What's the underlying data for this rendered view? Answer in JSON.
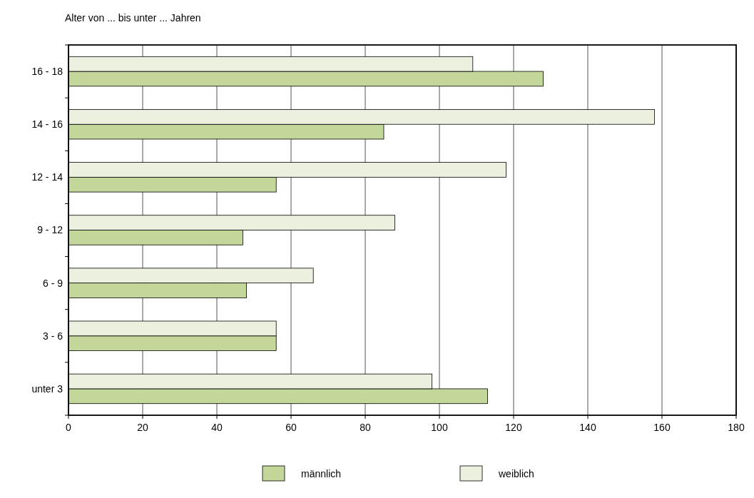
{
  "chart_data": {
    "type": "bar",
    "orientation": "horizontal",
    "ylabel": "Alter von ... bis unter ... Jahren",
    "categories": [
      "16 - 18",
      "14 - 16",
      "12 - 14",
      "9 - 12",
      "6 - 9",
      "3 - 6",
      "unter 3"
    ],
    "series": [
      {
        "name": "männlich",
        "color": "#c4d79b",
        "values": [
          128,
          85,
          56,
          47,
          48,
          56,
          113
        ]
      },
      {
        "name": "weiblich",
        "color": "#ebf1de",
        "values": [
          109,
          158,
          118,
          88,
          66,
          56,
          98
        ]
      }
    ],
    "xlim": [
      0,
      180
    ],
    "xticks": [
      0,
      20,
      40,
      60,
      80,
      100,
      120,
      140,
      160,
      180
    ],
    "grid": "x",
    "legend": "bottom"
  }
}
